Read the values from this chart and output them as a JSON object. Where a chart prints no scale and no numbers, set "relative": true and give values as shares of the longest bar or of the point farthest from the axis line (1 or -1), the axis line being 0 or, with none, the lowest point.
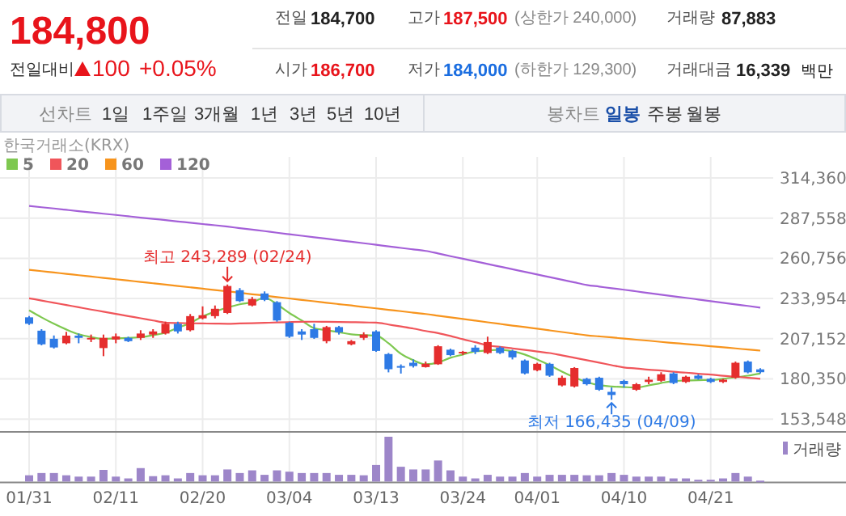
{
  "chart_data": [
    {
      "type": "other",
      "annotations": [
        "184,800",
        "전일대비",
        "100",
        "+0.05%",
        "전일",
        "184,700",
        "고가",
        "187,500",
        "(상한가 240,000)",
        "거래량",
        "87,883",
        "시가",
        "186,700",
        "저가",
        "184,000",
        "(하한가 129,300)",
        "거래대금",
        "16,339",
        "백만",
        "선차트",
        "1일",
        "1주일",
        "3개월",
        "1년",
        "3년",
        "5년",
        "10년",
        "봉차트",
        "일봉",
        "주봉",
        "월봉"
      ]
    },
    {
      "type": "candlestick",
      "legend_title": "한국거래소(KRX)",
      "legend": "top left",
      "grid": true,
      "categories": [
        "01/31",
        null,
        null,
        null,
        null,
        null,
        null,
        "02/11",
        null,
        null,
        null,
        null,
        null,
        null,
        "02/20",
        null,
        null,
        null,
        null,
        null,
        null,
        "03/04",
        null,
        null,
        null,
        null,
        null,
        null,
        "03/13",
        null,
        null,
        null,
        null,
        null,
        null,
        "03/24",
        null,
        null,
        null,
        null,
        null,
        "04/01",
        null,
        null,
        null,
        null,
        null,
        null,
        "04/10",
        null,
        null,
        null,
        null,
        null,
        null,
        "04/21",
        null,
        null,
        null,
        null
      ],
      "ylim": [
        145000,
        314360
      ],
      "yticks": [
        {
          "value": 153548,
          "label": "153,548"
        },
        {
          "value": 180350,
          "label": "180,350"
        },
        {
          "value": 207152,
          "label": "207,152"
        },
        {
          "value": 233954,
          "label": "233,954"
        },
        {
          "value": 260756,
          "label": "260,756"
        },
        {
          "value": 287558,
          "label": "287,558"
        },
        {
          "value": 314360,
          "label": "314,360"
        }
      ],
      "ohlc": [
        [
          221400,
          222200,
          216300,
          217100
        ],
        [
          212500,
          213500,
          202700,
          203400
        ],
        [
          207100,
          209300,
          200600,
          201300
        ],
        [
          204100,
          211700,
          203400,
          209200
        ],
        [
          209200,
          210600,
          204100,
          207700
        ],
        [
          207000,
          209900,
          204900,
          207700
        ],
        [
          200900,
          209900,
          195500,
          207700
        ],
        [
          206600,
          210600,
          204100,
          208700
        ],
        [
          207700,
          208500,
          204900,
          205500
        ],
        [
          207700,
          212800,
          206300,
          210600
        ],
        [
          209900,
          213500,
          207700,
          212000
        ],
        [
          210600,
          218500,
          209900,
          217100
        ],
        [
          217100,
          218500,
          210600,
          212000
        ],
        [
          212800,
          223600,
          212000,
          222200
        ],
        [
          220700,
          228700,
          220000,
          222800
        ],
        [
          222200,
          229300,
          220700,
          227100
        ],
        [
          224300,
          243289,
          223600,
          242300
        ],
        [
          239500,
          240900,
          231500,
          232200
        ],
        [
          229300,
          235000,
          228700,
          233600
        ],
        [
          237300,
          238700,
          232200,
          233000
        ],
        [
          231500,
          232200,
          218500,
          219300
        ],
        [
          217800,
          218500,
          207700,
          208500
        ],
        [
          212000,
          213500,
          206300,
          209900
        ],
        [
          213500,
          217100,
          207000,
          207700
        ],
        [
          205500,
          215700,
          204100,
          214900
        ],
        [
          214900,
          215700,
          209900,
          211400
        ],
        [
          203400,
          206300,
          202700,
          205500
        ],
        [
          207700,
          211400,
          206300,
          209900
        ],
        [
          212000,
          212800,
          198400,
          199000
        ],
        [
          196900,
          197600,
          184700,
          186800
        ],
        [
          188900,
          190000,
          183900,
          187900
        ],
        [
          191100,
          193300,
          187900,
          188900
        ],
        [
          188200,
          191900,
          187900,
          190400
        ],
        [
          190100,
          202800,
          189700,
          202100
        ],
        [
          199800,
          200500,
          195500,
          196200
        ],
        [
          197600,
          199000,
          196200,
          198400
        ],
        [
          201200,
          202800,
          196900,
          198400
        ],
        [
          197600,
          208500,
          196900,
          204900
        ],
        [
          201200,
          202000,
          196900,
          197600
        ],
        [
          199000,
          199800,
          193300,
          194700
        ],
        [
          192600,
          193300,
          183300,
          184000
        ],
        [
          186100,
          191100,
          185400,
          190400
        ],
        [
          190400,
          191100,
          181700,
          182500
        ],
        [
          176000,
          182500,
          175300,
          181100
        ],
        [
          175300,
          188200,
          174600,
          187600
        ],
        [
          180400,
          181100,
          176000,
          176800
        ],
        [
          181100,
          181800,
          172400,
          173100
        ],
        [
          171700,
          174600,
          166435,
          169600
        ],
        [
          179000,
          179800,
          174600,
          176800
        ],
        [
          173100,
          177600,
          172400,
          176800
        ],
        [
          178300,
          181800,
          176800,
          179800
        ],
        [
          179100,
          184800,
          178300,
          183400
        ],
        [
          184000,
          184800,
          176800,
          177600
        ],
        [
          178300,
          182500,
          177600,
          181800
        ],
        [
          182500,
          183400,
          179800,
          180400
        ],
        [
          180400,
          181100,
          177600,
          178300
        ],
        [
          178300,
          180400,
          177600,
          179800
        ],
        [
          181100,
          191900,
          180400,
          191100
        ],
        [
          191900,
          192600,
          184000,
          184700
        ],
        [
          186700,
          187500,
          184000,
          184800
        ]
      ],
      "series": [
        {
          "name": "5",
          "type": "line",
          "color": "#7ec850",
          "values": [
            226100,
            221400,
            217100,
            213300,
            210100,
            208200,
            207000,
            207400,
            207700,
            208100,
            209500,
            211100,
            214400,
            217600,
            222000,
            225200,
            227900,
            230100,
            231500,
            234400,
            230100,
            224300,
            219300,
            214200,
            212800,
            211500,
            210100,
            209500,
            209200,
            204100,
            197100,
            192800,
            190100,
            191200,
            194400,
            196600,
            198700,
            199300,
            199800,
            198700,
            196600,
            193300,
            189500,
            185200,
            181400,
            178200,
            176200,
            175300,
            174900,
            174600,
            176000,
            177600,
            178900,
            179300,
            179500,
            179600,
            180400,
            181400,
            182500,
            183900
          ]
        },
        {
          "name": "20",
          "type": "line",
          "color": "#f0555a",
          "values": [
            234100,
            232600,
            231100,
            229600,
            228100,
            226600,
            225200,
            223700,
            222200,
            220800,
            219300,
            217900,
            217600,
            217400,
            217300,
            217200,
            217100,
            217300,
            217500,
            217700,
            218000,
            218200,
            218400,
            218500,
            218400,
            218300,
            218200,
            218000,
            217900,
            216600,
            215300,
            213900,
            212300,
            210900,
            209000,
            206800,
            204800,
            202700,
            201700,
            200700,
            199700,
            198600,
            197600,
            196000,
            194400,
            192800,
            191200,
            189500,
            187900,
            187300,
            186500,
            185900,
            185100,
            184500,
            183800,
            183200,
            182400,
            181800,
            181100,
            180400
          ]
        },
        {
          "name": "60",
          "type": "line",
          "color": "#f7941d",
          "values": [
            253100,
            252200,
            251300,
            250400,
            249500,
            248600,
            247700,
            246800,
            245900,
            245000,
            244100,
            243200,
            242300,
            241400,
            240500,
            239600,
            238700,
            237800,
            236800,
            235900,
            234900,
            234000,
            233000,
            232100,
            231100,
            230200,
            229300,
            228300,
            227400,
            226400,
            225500,
            224500,
            223600,
            222500,
            221400,
            220300,
            219200,
            218100,
            217000,
            215900,
            214900,
            213800,
            212700,
            211600,
            210500,
            209400,
            208700,
            208000,
            207200,
            206500,
            205800,
            205000,
            204300,
            203600,
            202900,
            202100,
            201400,
            200700,
            199900,
            199200
          ]
        },
        {
          "name": "120",
          "type": "line",
          "color": "#a460d8",
          "values": [
            295700,
            294800,
            294000,
            293100,
            292200,
            291400,
            290500,
            289700,
            288800,
            287900,
            287100,
            286200,
            285300,
            284500,
            283600,
            282800,
            281900,
            280900,
            279900,
            278900,
            277800,
            276800,
            275800,
            274800,
            273800,
            272800,
            271800,
            270800,
            269800,
            268700,
            267700,
            266700,
            265700,
            264000,
            262200,
            260500,
            258700,
            257000,
            255200,
            253500,
            251700,
            250000,
            248200,
            246500,
            244700,
            243000,
            241900,
            240800,
            239800,
            238700,
            237600,
            236500,
            235400,
            234400,
            233300,
            232200,
            231100,
            230000,
            229000,
            227900
          ]
        }
      ],
      "annotations": [
        {
          "text": "최고 243,289 (02/24)",
          "y": 243289
        },
        {
          "text": "최저 166,435 (04/09)",
          "y": 166435
        }
      ]
    },
    {
      "type": "bar",
      "relative": true,
      "legend": "right",
      "series": [
        {
          "name": "거래량",
          "color": "#9d86c9",
          "values": [
            0.14,
            0.19,
            0.19,
            0.14,
            0.11,
            0.11,
            0.26,
            0.11,
            0.07,
            0.3,
            0.12,
            0.14,
            0.07,
            0.19,
            0.14,
            0.14,
            0.27,
            0.19,
            0.25,
            0.15,
            0.25,
            0.22,
            0.19,
            0.19,
            0.19,
            0.15,
            0.15,
            0.14,
            0.37,
            1,
            0.33,
            0.27,
            0.27,
            0.47,
            0.25,
            0.11,
            0.07,
            0.15,
            0.11,
            0.11,
            0.19,
            0.11,
            0.15,
            0.15,
            0.15,
            0.14,
            0.14,
            0.19,
            0.15,
            0.11,
            0.11,
            0.11,
            0.07,
            0.07,
            0.04,
            0.04,
            0.07,
            0.19,
            0.11,
            0.02
          ]
        }
      ]
    }
  ]
}
